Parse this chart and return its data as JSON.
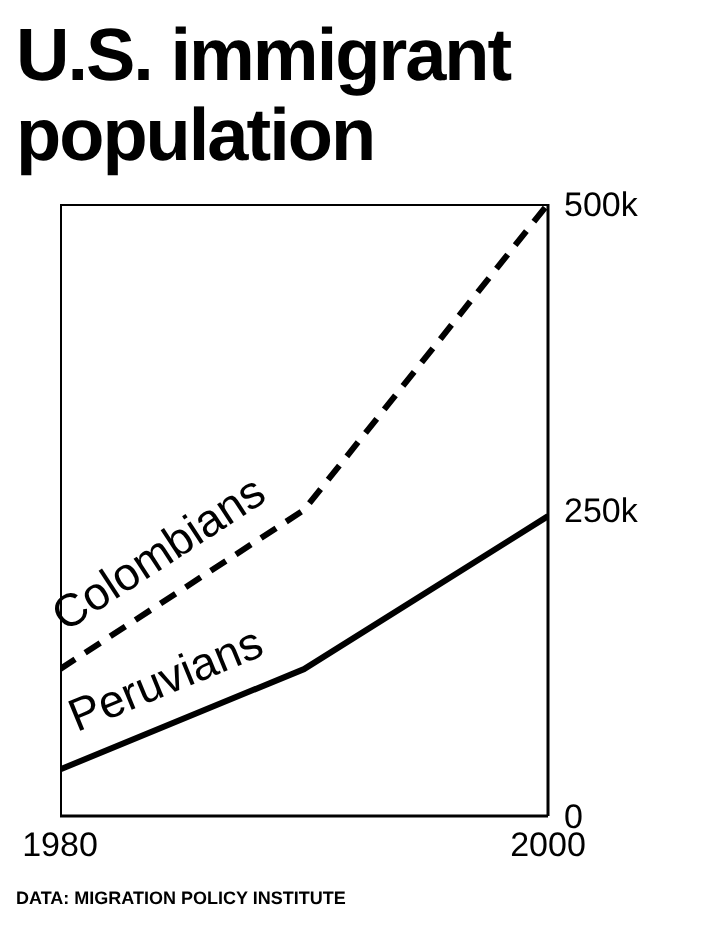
{
  "chart_data": {
    "type": "line",
    "title": "U.S. immigrant population",
    "x": [
      1980,
      1990,
      2000
    ],
    "series": [
      {
        "name": "Colombians",
        "color": "#000000",
        "line_style": "dashed",
        "values": [
          120,
          250,
          500
        ]
      },
      {
        "name": "Peruvians",
        "color": "#000000",
        "line_style": "solid",
        "values": [
          38,
          120,
          245
        ]
      }
    ],
    "xlim": [
      1980,
      2000
    ],
    "xticks": [
      1980,
      2000
    ],
    "ylim": [
      0,
      500
    ],
    "yticks": [
      {
        "value": 0,
        "label": "0"
      },
      {
        "value": 250,
        "label": "250k"
      },
      {
        "value": 500,
        "label": "500k"
      }
    ],
    "grid": false,
    "legend": false,
    "marker": "none",
    "annotations": [
      "DATA: MIGRATION POLICY INSTITUTE"
    ]
  }
}
